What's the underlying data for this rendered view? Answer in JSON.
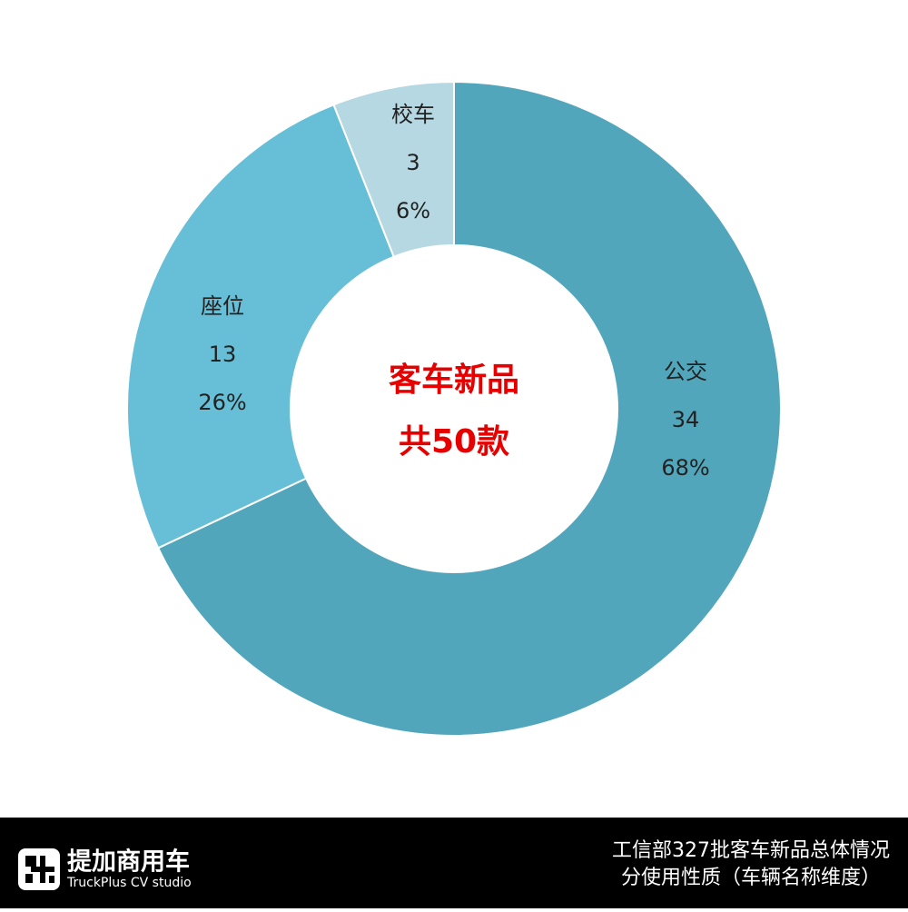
{
  "chart_data": {
    "type": "donut",
    "center_text": [
      "客车新品",
      "共50款"
    ],
    "categories": [
      "公交",
      "座位",
      "校车"
    ],
    "values": [
      34,
      13,
      3
    ],
    "percentages": [
      68,
      26,
      6
    ],
    "percentage_labels": [
      "68%",
      "26%",
      "6%"
    ],
    "colors": [
      "#52a6bc",
      "#66bfd6",
      "#b6d8e3"
    ]
  },
  "footer": {
    "logo_title": "提加商用车",
    "logo_subtitle": "TruckPlus CV studio",
    "caption": [
      "工信部327批客车新品总体情况",
      "分使用性质（车辆名称维度）"
    ]
  }
}
